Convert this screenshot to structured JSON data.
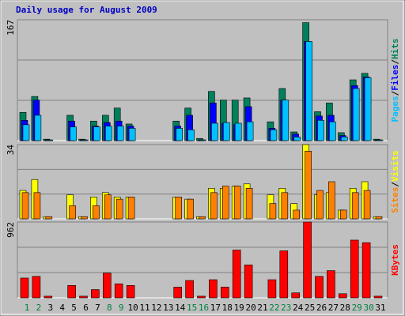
{
  "title": "Daily usage for August 2009",
  "legend_separator": "/",
  "chart_data": [
    {
      "type": "bar",
      "ylim": [
        0,
        167
      ],
      "yticks": [
        167
      ],
      "grid": true,
      "series": [
        {
          "name": "Hits",
          "color": "#00805c",
          "values": [
            39,
            61,
            2,
            0,
            35,
            2,
            27,
            35,
            45,
            23,
            0,
            0,
            0,
            27,
            45,
            3,
            68,
            56,
            56,
            59,
            0,
            26,
            72,
            12,
            163,
            40,
            52,
            11,
            84,
            93,
            2
          ]
        },
        {
          "name": "Files",
          "color": "#0000ff",
          "values": [
            28,
            56,
            1,
            0,
            27,
            1,
            20,
            25,
            27,
            20,
            0,
            0,
            0,
            20,
            35,
            1,
            52,
            24,
            22,
            47,
            0,
            17,
            56,
            9,
            137,
            34,
            35,
            7,
            76,
            88,
            1
          ]
        },
        {
          "name": "Pages",
          "color": "#00c0ff",
          "values": [
            22,
            35,
            1,
            0,
            19,
            1,
            19,
            20,
            20,
            17,
            0,
            0,
            0,
            17,
            15,
            1,
            24,
            25,
            24,
            26,
            0,
            15,
            56,
            5,
            137,
            28,
            26,
            5,
            72,
            87,
            1
          ]
        }
      ]
    },
    {
      "type": "bar",
      "ylim": [
        0,
        34
      ],
      "yticks": [
        34
      ],
      "grid": true,
      "series": [
        {
          "name": "Visits",
          "color": "#ffff00",
          "values": [
            13,
            18,
            1,
            0,
            11,
            1,
            10,
            12,
            10,
            10,
            0,
            0,
            0,
            10,
            9,
            1,
            14,
            14,
            15,
            16,
            0,
            11,
            14,
            7,
            34,
            11,
            12,
            4,
            14,
            17,
            1
          ]
        },
        {
          "name": "Sites",
          "color": "#ff8000",
          "values": [
            12,
            12,
            1,
            0,
            6,
            1,
            6,
            11,
            9,
            10,
            0,
            0,
            0,
            10,
            9,
            1,
            12,
            15,
            15,
            14,
            0,
            7,
            12,
            4,
            31,
            13,
            17,
            4,
            12,
            13,
            1
          ]
        }
      ]
    },
    {
      "type": "bar",
      "ylim": [
        0,
        962
      ],
      "yticks": [
        962
      ],
      "grid": true,
      "categories": [
        "1",
        "2",
        "3",
        "4",
        "5",
        "6",
        "7",
        "8",
        "9",
        "10",
        "11",
        "12",
        "13",
        "14",
        "15",
        "16",
        "17",
        "18",
        "19",
        "20",
        "21",
        "22",
        "23",
        "24",
        "25",
        "26",
        "27",
        "28",
        "29",
        "30",
        "31"
      ],
      "category_colors": [
        "#008040",
        "#008040",
        "#000000",
        "#000000",
        "#000000",
        "#000000",
        "#000000",
        "#008040",
        "#008040",
        "#000000",
        "#000000",
        "#000000",
        "#000000",
        "#000000",
        "#008040",
        "#008040",
        "#000000",
        "#000000",
        "#000000",
        "#000000",
        "#000000",
        "#008040",
        "#008040",
        "#000000",
        "#000000",
        "#000000",
        "#000000",
        "#000000",
        "#008040",
        "#008040",
        "#000000"
      ],
      "series": [
        {
          "name": "KBytes",
          "color": "#ff0000",
          "values": [
            251,
            272,
            21,
            0,
            157,
            21,
            105,
            314,
            178,
            157,
            0,
            0,
            0,
            136,
            220,
            21,
            230,
            136,
            606,
            418,
            0,
            230,
            596,
            63,
            962,
            272,
            345,
            52,
            732,
            700,
            21
          ]
        }
      ]
    }
  ]
}
